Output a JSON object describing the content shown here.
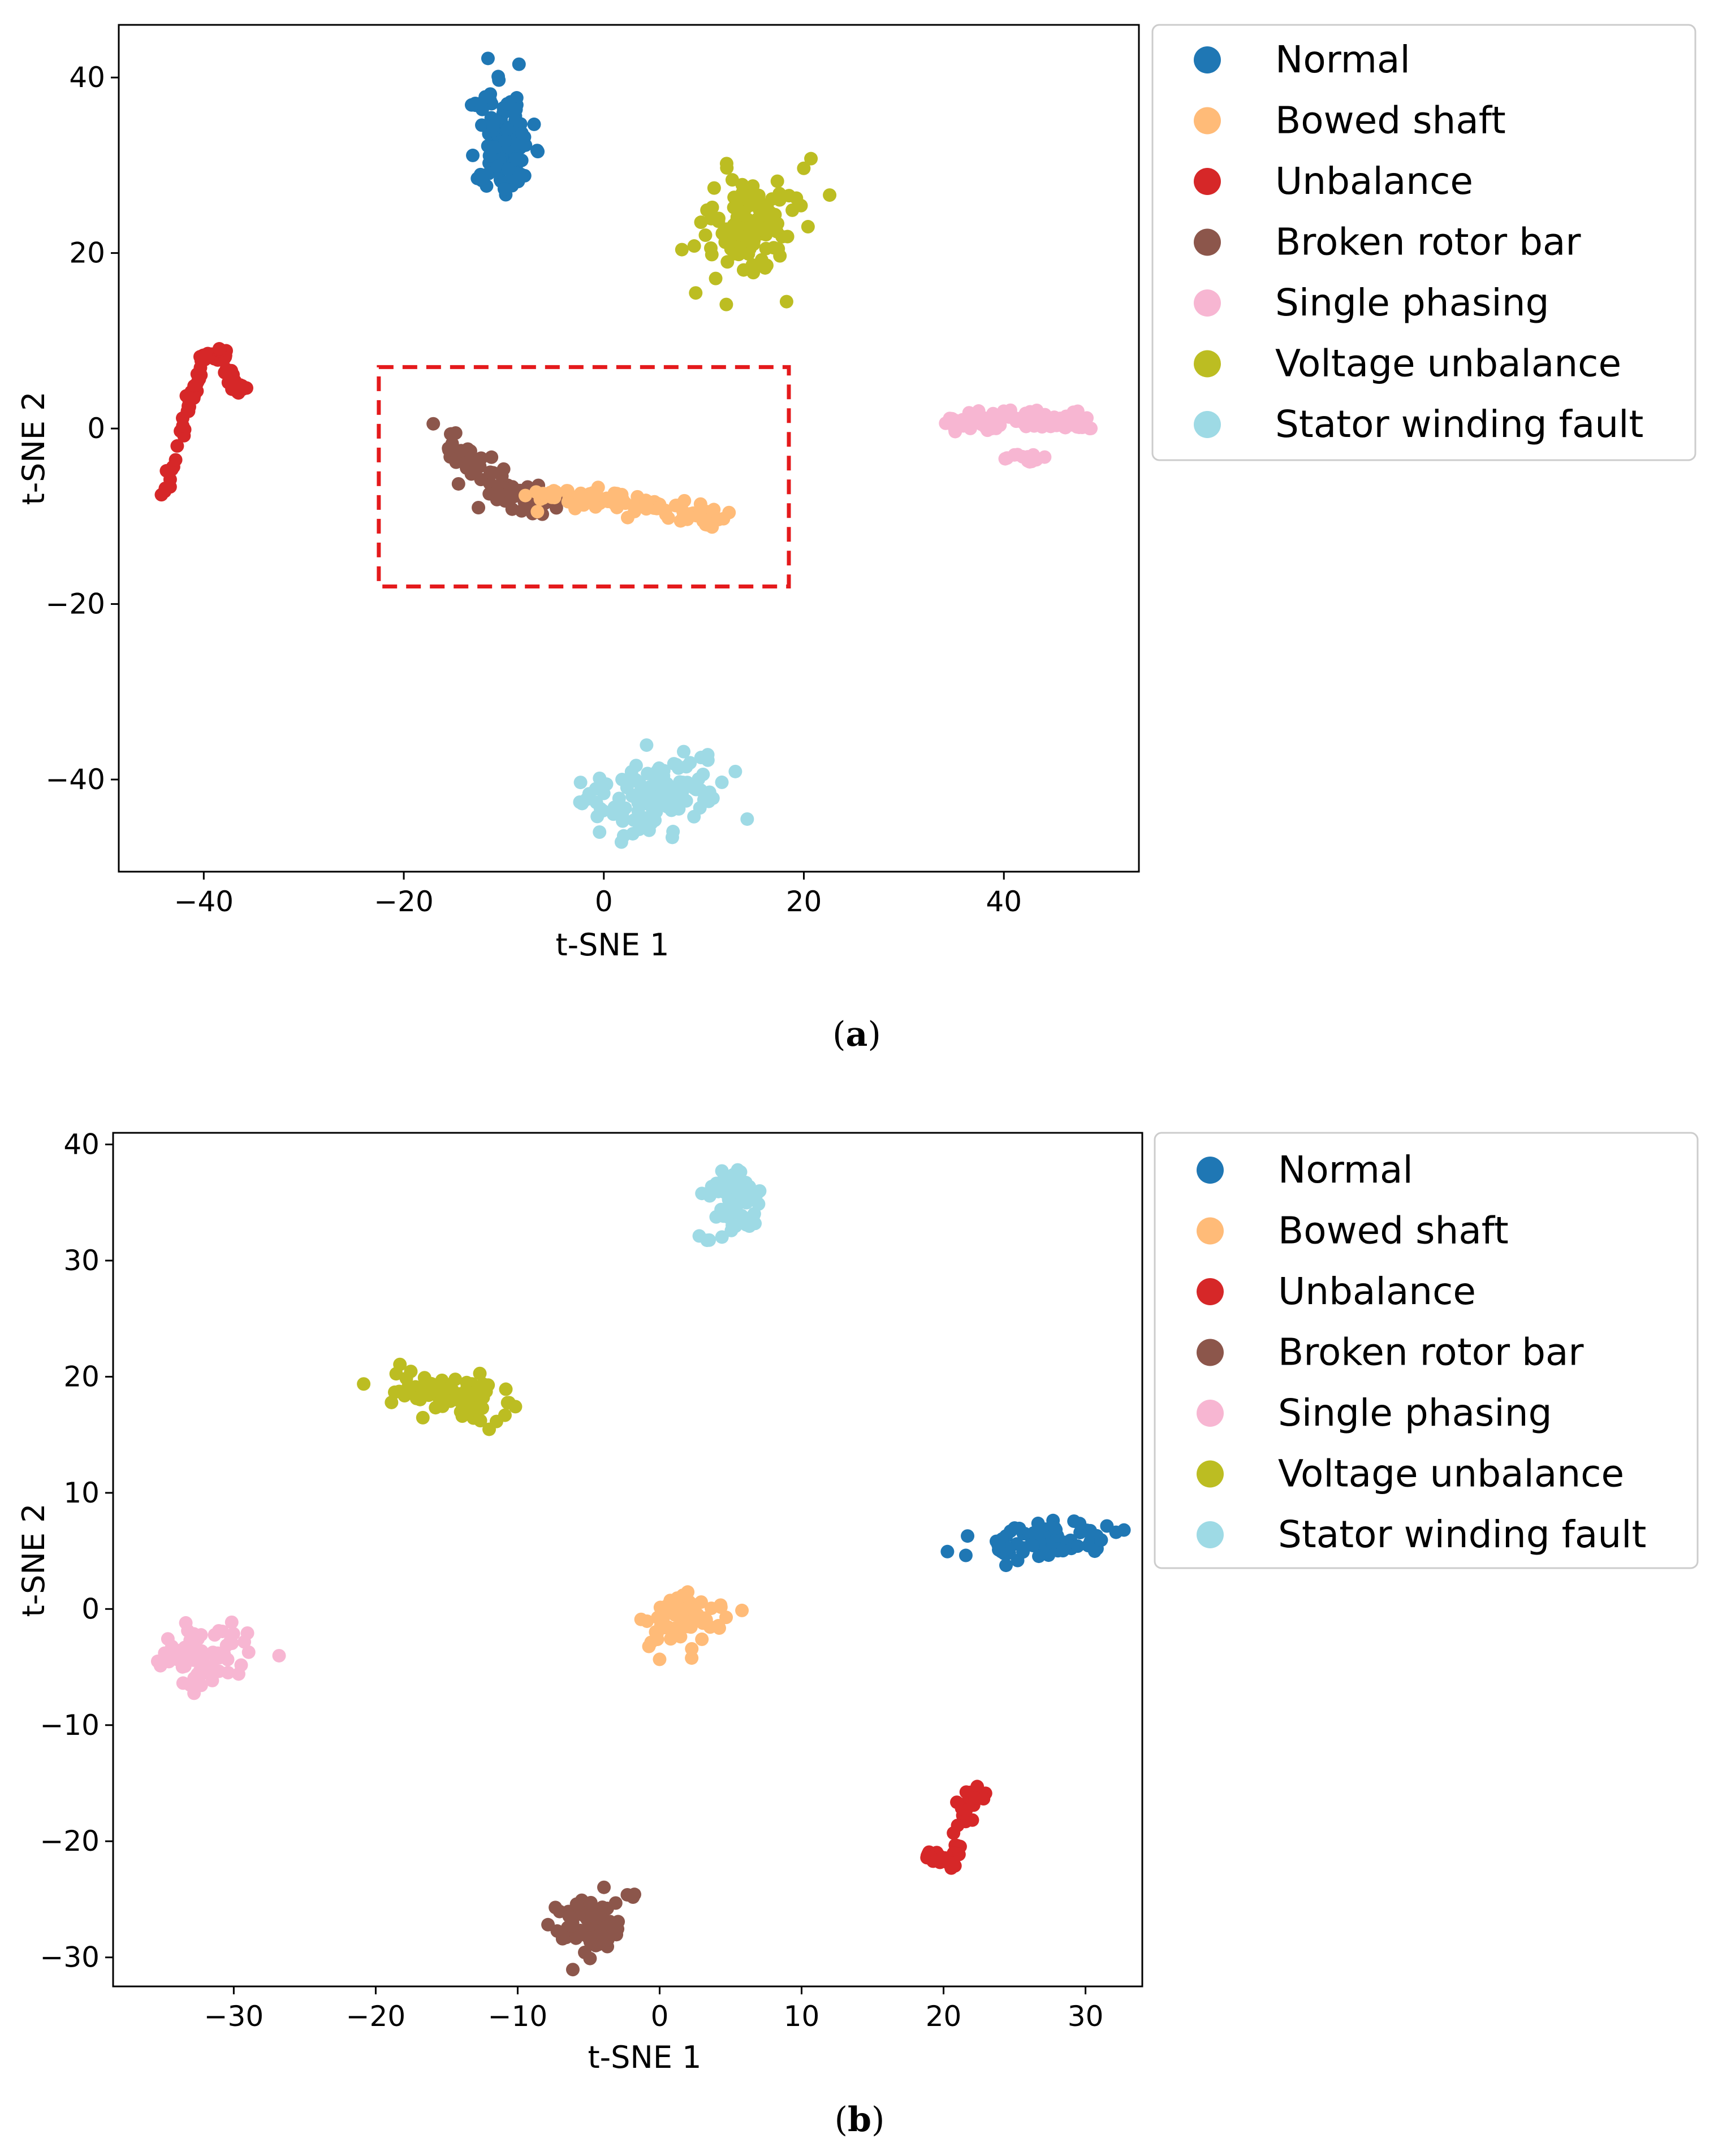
{
  "classes": [
    {
      "name": "Normal",
      "color": "#1f77b4"
    },
    {
      "name": "Bowed shaft",
      "color": "#ffbb78"
    },
    {
      "name": "Unbalance",
      "color": "#d62728"
    },
    {
      "name": "Broken rotor bar",
      "color": "#8c564b"
    },
    {
      "name": "Single phasing",
      "color": "#f7b6d2"
    },
    {
      "name": "Voltage unbalance",
      "color": "#bcbd22"
    },
    {
      "name": "Stator winding fault",
      "color": "#9edae5"
    }
  ],
  "chart_data": [
    {
      "type": "scatter",
      "panel": "a",
      "caption_letter": "a",
      "xlabel": "t-SNE 1",
      "ylabel": "t-SNE 2",
      "xlim": [
        -48.5,
        53.5
      ],
      "ylim": [
        -50.5,
        46
      ],
      "xticks": [
        -40,
        -20,
        0,
        20,
        40
      ],
      "yticks": [
        -40,
        -20,
        0,
        20,
        40
      ],
      "tick_labels_x": [
        "−40",
        "−20",
        "0",
        "20",
        "40"
      ],
      "tick_labels_y": [
        "−40",
        "−20",
        "0",
        "20",
        "40"
      ],
      "highlight_box": {
        "x0": -22.5,
        "x1": 18.5,
        "y0": -18,
        "y1": 7,
        "color": "#e41a1c",
        "style": "dashed"
      },
      "legend_position": "outside right, top",
      "clusters": [
        {
          "class": "Normal",
          "cx": -10,
          "cy": 33,
          "sx": 1.5,
          "sy": 4,
          "rot": 0.6,
          "n": 120,
          "seed": 11
        },
        {
          "class": "Voltage unbalance",
          "cx": 15,
          "cy": 23,
          "sx": 3,
          "sy": 3.5,
          "rot": 0.5,
          "n": 110,
          "seed": 12
        },
        {
          "class": "Unbalance",
          "path": [
            [
              -44,
              -8
            ],
            [
              -42,
              1
            ],
            [
              -40,
              8
            ],
            [
              -38,
              8.5
            ],
            [
              -37,
              5
            ],
            [
              -36,
              4.5
            ]
          ],
          "jitter": 0.6,
          "n": 90,
          "seed": 13
        },
        {
          "class": "Broken rotor bar",
          "path": [
            [
              -16,
              -1
            ],
            [
              -12,
              -5
            ],
            [
              -9,
              -8
            ],
            [
              -6,
              -8
            ]
          ],
          "jitter": 1.8,
          "n": 80,
          "seed": 14
        },
        {
          "class": "Bowed shaft",
          "path": [
            [
              -7,
              -7.5
            ],
            [
              0,
              -8
            ],
            [
              6,
              -9
            ],
            [
              12,
              -10
            ]
          ],
          "jitter": 1.2,
          "n": 100,
          "seed": 15
        },
        {
          "class": "Single phasing",
          "path": [
            [
              34,
              0.5
            ],
            [
              40,
              1
            ],
            [
              46,
              1
            ],
            [
              48,
              0.5
            ]
          ],
          "jitter": 1.0,
          "n": 110,
          "seed": 16
        },
        {
          "class": "Single phasing",
          "path": [
            [
              40,
              -3
            ],
            [
              44,
              -3.5
            ]
          ],
          "jitter": 0.6,
          "n": 15,
          "seed": 17
        },
        {
          "class": "Stator winding fault",
          "cx": 5,
          "cy": -42,
          "sx": 3.2,
          "sy": 2.2,
          "rot": 0.2,
          "n": 130,
          "seed": 18
        }
      ]
    },
    {
      "type": "scatter",
      "panel": "b",
      "caption_letter": "b",
      "xlabel": "t-SNE 1",
      "ylabel": "t-SNE 2",
      "xlim": [
        -38.5,
        34
      ],
      "ylim": [
        -32.5,
        41
      ],
      "xticks": [
        -30,
        -20,
        -10,
        0,
        10,
        20,
        30
      ],
      "yticks": [
        -30,
        -20,
        -10,
        0,
        10,
        20,
        30,
        40
      ],
      "tick_labels_x": [
        "−30",
        "−20",
        "−10",
        "0",
        "10",
        "20",
        "30"
      ],
      "tick_labels_y": [
        "−30",
        "−20",
        "−10",
        "0",
        "10",
        "20",
        "30",
        "40"
      ],
      "legend_position": "outside right, top",
      "clusters": [
        {
          "class": "Stator winding fault",
          "cx": 5.5,
          "cy": 35,
          "sx": 1.2,
          "sy": 1.8,
          "rot": 0.7,
          "n": 60,
          "seed": 21
        },
        {
          "class": "Voltage unbalance",
          "cx": -15,
          "cy": 18.5,
          "sx": 2,
          "sy": 0.9,
          "rot": -0.2,
          "n": 80,
          "seed": 22
        },
        {
          "class": "Normal",
          "cx": 27,
          "cy": 5.8,
          "sx": 2.5,
          "sy": 0.7,
          "rot": 0.1,
          "n": 70,
          "seed": 23
        },
        {
          "class": "Bowed shaft",
          "cx": 1.5,
          "cy": -1.2,
          "sx": 1.4,
          "sy": 1.3,
          "rot": 0,
          "n": 70,
          "seed": 24
        },
        {
          "class": "Single phasing",
          "cx": -32,
          "cy": -4.2,
          "sx": 1.6,
          "sy": 1.1,
          "rot": 0,
          "n": 80,
          "seed": 25
        },
        {
          "class": "Unbalance",
          "path": [
            [
              19,
              -21
            ],
            [
              20.5,
              -22
            ],
            [
              21.5,
              -18
            ],
            [
              22.5,
              -15.5
            ]
          ],
          "jitter": 0.6,
          "n": 60,
          "seed": 26
        },
        {
          "class": "Broken rotor bar",
          "cx": -5,
          "cy": -27,
          "sx": 1.4,
          "sy": 1.5,
          "rot": 0.5,
          "n": 70,
          "seed": 27
        }
      ]
    }
  ]
}
